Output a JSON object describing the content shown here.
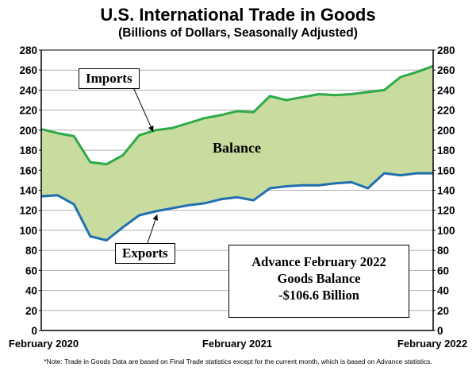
{
  "title": "U.S. International Trade in Goods",
  "subtitle": "(Billions of Dollars, Seasonally Adjusted)",
  "labels": {
    "imports": "Imports",
    "exports": "Exports",
    "balance": "Balance"
  },
  "info_box": {
    "line1": "Advance February 2022",
    "line2": "Goods Balance",
    "line3": "-$106.6 Billion"
  },
  "note": "*Note: Trade in Goods Data are based on Final Trade statistics except for the current month, which is based on Advance statistics.",
  "colors": {
    "imports_line": "#2eaa4a",
    "exports_line": "#1f6fb0",
    "balance_fill": "#c8dca0"
  },
  "chart_data": {
    "type": "area",
    "title": "U.S. International Trade in Goods",
    "subtitle": "(Billions of Dollars, Seasonally Adjusted)",
    "x": [
      "February 2020",
      "March 2020",
      "April 2020",
      "May 2020",
      "June 2020",
      "July 2020",
      "August 2020",
      "September 2020",
      "October 2020",
      "November 2020",
      "December 2020",
      "January 2021",
      "February 2021",
      "March 2021",
      "April 2021",
      "May 2021",
      "June 2021",
      "July 2021",
      "August 2021",
      "September 2021",
      "October 2021",
      "November 2021",
      "December 2021",
      "January 2022",
      "February 2022"
    ],
    "x_tick_labels": [
      "February 2020",
      "February 2021",
      "February 2022"
    ],
    "series": [
      {
        "name": "Imports",
        "values": [
          201,
          197,
          194,
          168,
          166,
          175,
          195,
          200,
          202,
          207,
          212,
          215,
          219,
          218,
          234,
          230,
          233,
          236,
          235,
          236,
          238,
          240,
          253,
          258,
          264
        ]
      },
      {
        "name": "Exports",
        "values": [
          134,
          135,
          126,
          94,
          90,
          103,
          115,
          119,
          122,
          125,
          127,
          131,
          133,
          130,
          142,
          144,
          145,
          145,
          147,
          148,
          142,
          157,
          155,
          157,
          157
        ]
      }
    ],
    "shaded_region": "Balance",
    "ylim": [
      0,
      280
    ],
    "yticks": [
      0,
      20,
      40,
      60,
      80,
      100,
      120,
      140,
      160,
      180,
      200,
      220,
      240,
      260,
      280
    ],
    "secondary_y_axis": true,
    "grid": "horizontal"
  }
}
